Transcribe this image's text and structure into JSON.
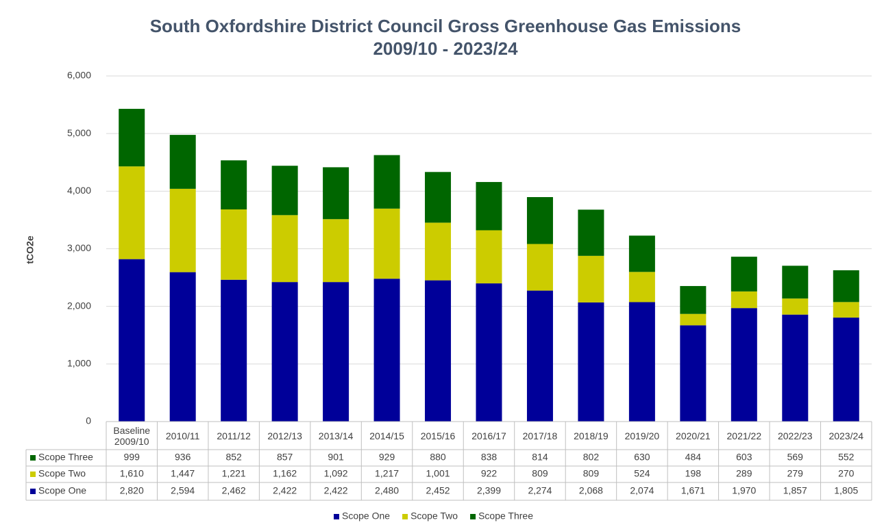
{
  "chart_data": {
    "type": "stacked_bar",
    "title": "South Oxfordshire District Council Gross Greenhouse Gas Emissions",
    "subtitle": "2009/10  - 2023/24",
    "y_label": "tCO2e",
    "categories": [
      "Baseline 2009/10",
      "2010/11",
      "2011/12",
      "2012/13",
      "2013/14",
      "2014/15",
      "2015/16",
      "2016/17",
      "2017/18",
      "2018/19",
      "2019/20",
      "2020/21",
      "2021/22",
      "2022/23",
      "2023/24"
    ],
    "series": [
      {
        "name": "Scope One",
        "color": "#000099",
        "values": [
          2820,
          2594,
          2462,
          2422,
          2422,
          2480,
          2452,
          2399,
          2274,
          2068,
          2074,
          1671,
          1970,
          1857,
          1805
        ],
        "value_labels": [
          "2,820",
          "2,594",
          "2,462",
          "2,422",
          "2,422",
          "2,480",
          "2,452",
          "2,399",
          "2,274",
          "2,068",
          "2,074",
          "1,671",
          "1,970",
          "1,857",
          "1,805"
        ]
      },
      {
        "name": "Scope Two",
        "color": "#cccc00",
        "values": [
          1610,
          1447,
          1221,
          1162,
          1092,
          1217,
          1001,
          922,
          809,
          809,
          524,
          198,
          289,
          279,
          270
        ],
        "value_labels": [
          "1,610",
          "1,447",
          "1,221",
          "1,162",
          "1,092",
          "1,217",
          "1,001",
          "922",
          "809",
          "809",
          "524",
          "198",
          "289",
          "279",
          "270"
        ]
      },
      {
        "name": "Scope Three",
        "color": "#006600",
        "values": [
          999,
          936,
          852,
          857,
          901,
          929,
          880,
          838,
          814,
          802,
          630,
          484,
          603,
          569,
          552
        ],
        "value_labels": [
          "999",
          "936",
          "852",
          "857",
          "901",
          "929",
          "880",
          "838",
          "814",
          "802",
          "630",
          "484",
          "603",
          "569",
          "552"
        ]
      }
    ],
    "ylim": [
      0,
      6000
    ],
    "yticks": [
      0,
      {
        "value": 1000,
        "label": "1,000"
      },
      {
        "value": 2000,
        "label": "2,000"
      },
      {
        "value": 3000,
        "label": "3,000"
      },
      {
        "value": 4000,
        "label": "4,000"
      },
      {
        "value": 5000,
        "label": "5,000"
      },
      {
        "value": 6000,
        "label": "6,000"
      }
    ],
    "grid": true,
    "legend": "bottom"
  }
}
